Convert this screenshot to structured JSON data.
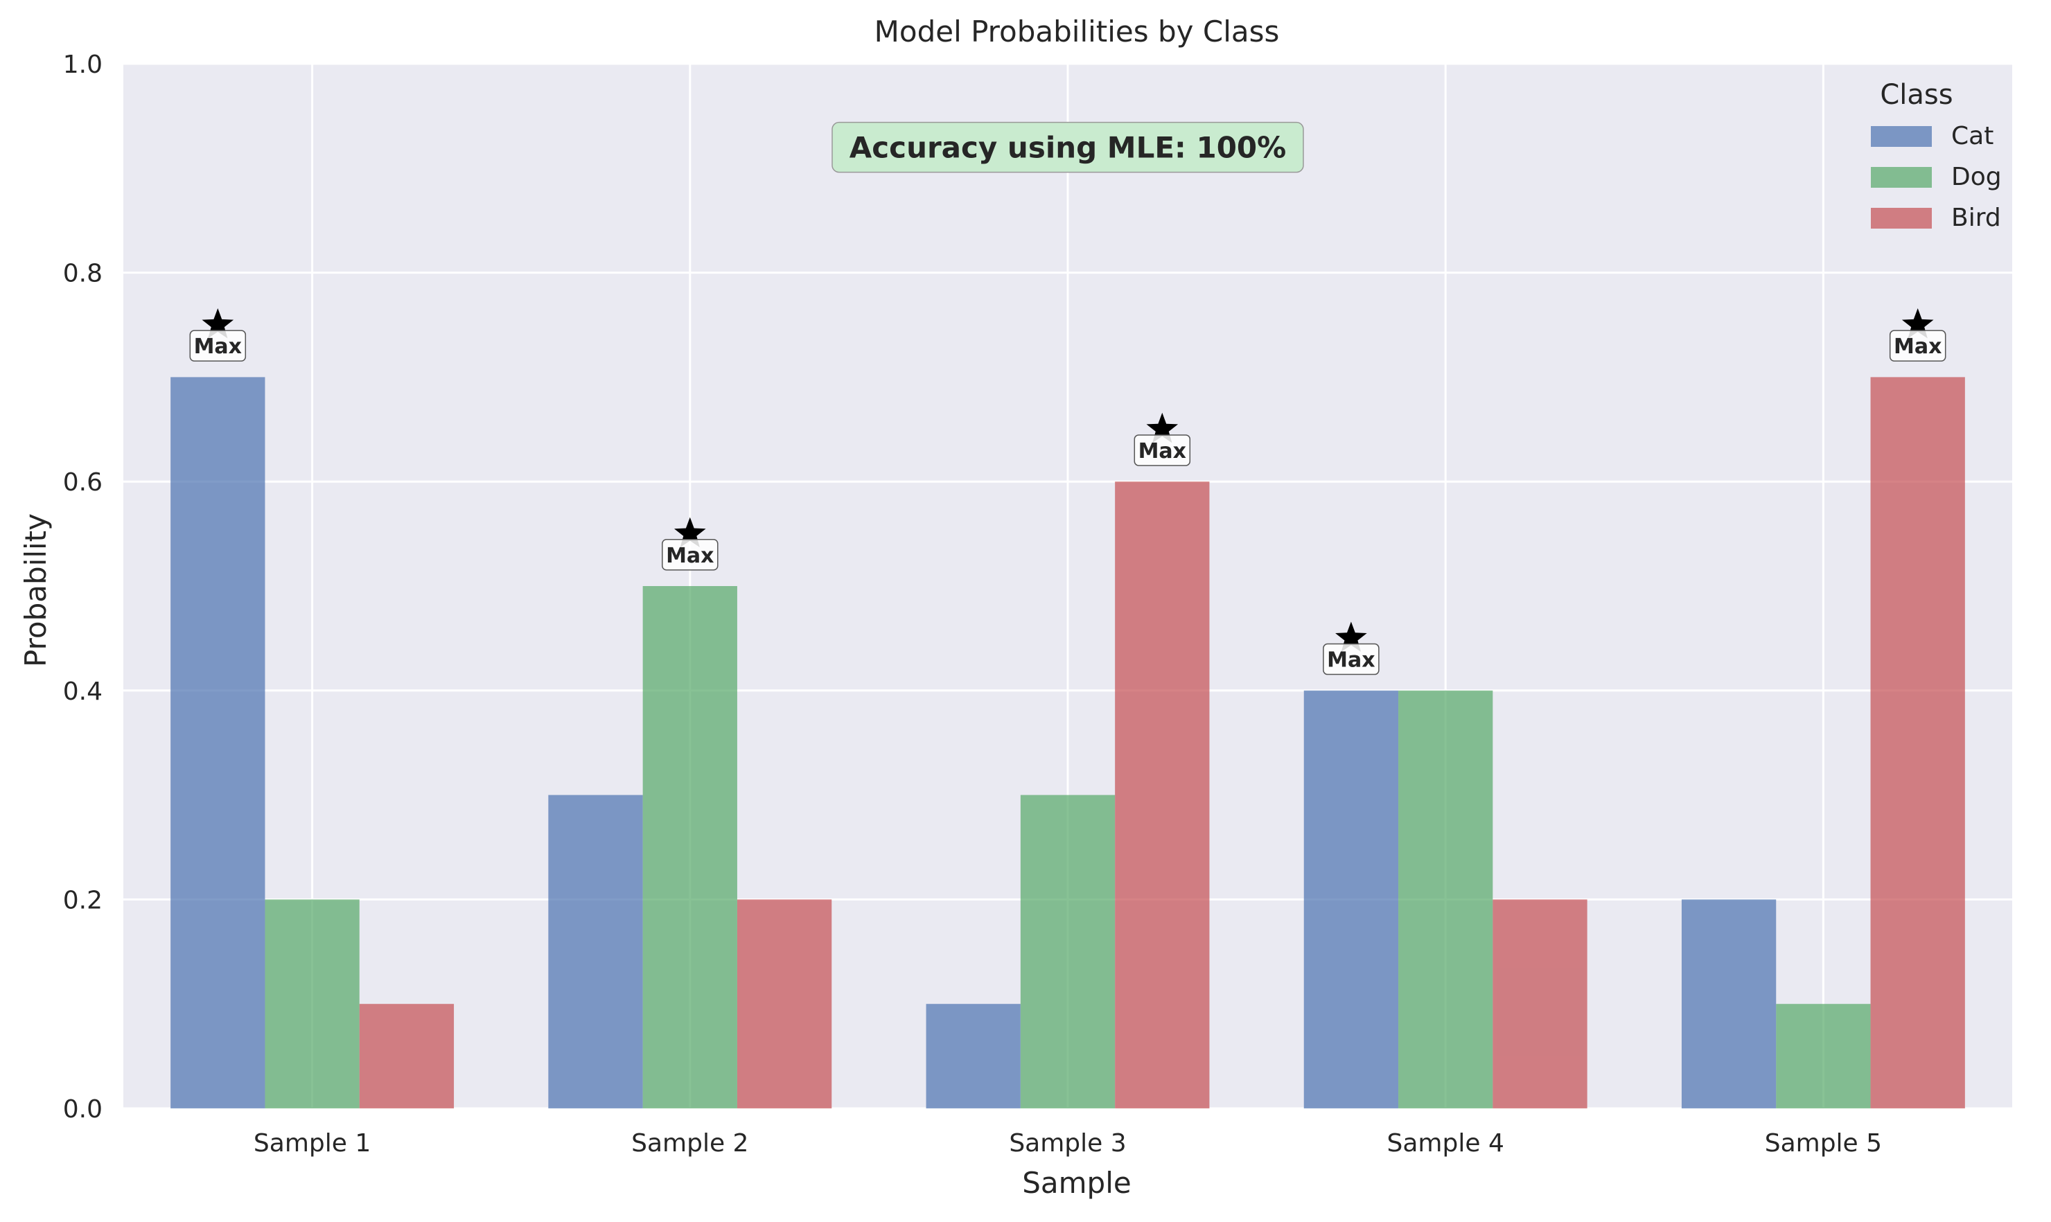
{
  "chart_data": {
    "type": "bar",
    "title": "Model Probabilities by Class",
    "xlabel": "Sample",
    "ylabel": "Probability",
    "categories": [
      "Sample 1",
      "Sample 2",
      "Sample 3",
      "Sample 4",
      "Sample 5"
    ],
    "series": [
      {
        "name": "Cat",
        "values": [
          0.7,
          0.3,
          0.1,
          0.4,
          0.2
        ],
        "color": "#4c72b0"
      },
      {
        "name": "Dog",
        "values": [
          0.2,
          0.5,
          0.3,
          0.4,
          0.1
        ],
        "color": "#55a868"
      },
      {
        "name": "Bird",
        "values": [
          0.1,
          0.2,
          0.6,
          0.2,
          0.7
        ],
        "color": "#c44e52"
      }
    ],
    "ylim": [
      0,
      1.0
    ],
    "yticks": [
      0.0,
      0.2,
      0.4,
      0.6,
      0.8,
      1.0
    ],
    "ytick_labels": [
      "0.0",
      "0.2",
      "0.4",
      "0.6",
      "0.8",
      "1.0"
    ],
    "grid": true,
    "background_color": "#eaeaf2",
    "legend": {
      "title": "Class",
      "placement": "top-right"
    },
    "max_markers": {
      "label": "Max",
      "marker": "star",
      "series_index_per_category": [
        0,
        1,
        2,
        0,
        2
      ]
    },
    "annotation": {
      "text": "Accuracy using MLE: 100%",
      "placement": "top-center",
      "box_color": "#c9ebcf"
    }
  }
}
